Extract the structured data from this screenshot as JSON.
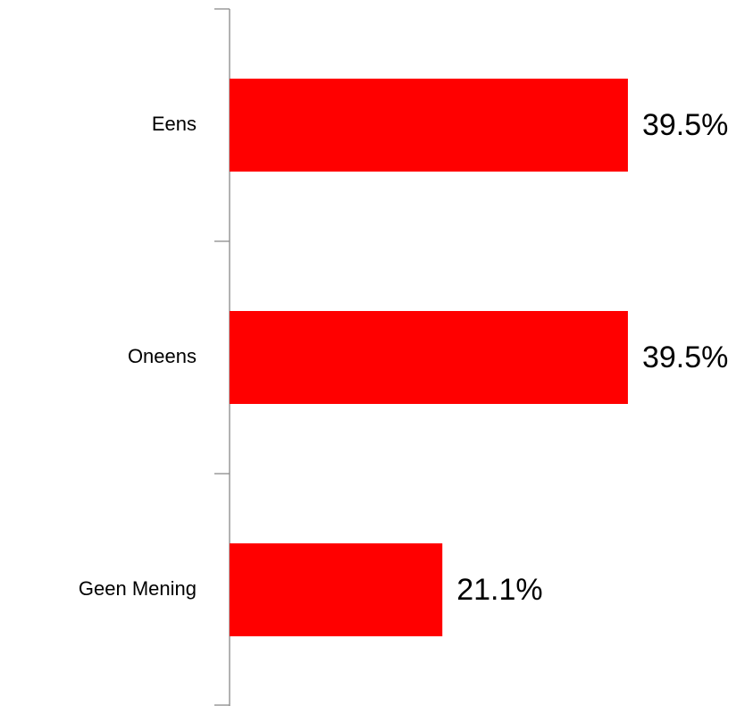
{
  "chart_data": {
    "type": "bar",
    "orientation": "horizontal",
    "categories": [
      "Eens",
      "Oneens",
      "Geen Mening"
    ],
    "values": [
      39.5,
      39.5,
      21.1
    ],
    "value_labels": [
      "39.5%",
      "39.5%",
      "21.1%"
    ],
    "color": "#ff0000"
  }
}
